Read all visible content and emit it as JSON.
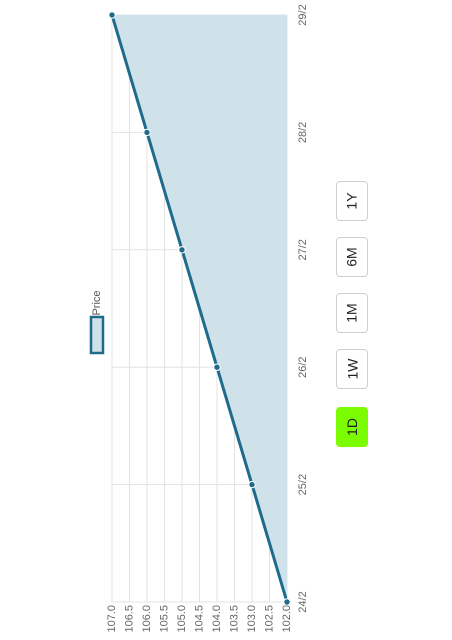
{
  "chart_data": {
    "type": "area",
    "x": [
      "24/2",
      "25/2",
      "26/2",
      "27/2",
      "28/2",
      "29/2"
    ],
    "series": [
      {
        "name": "Price",
        "values": [
          102.0,
          103.0,
          104.0,
          105.0,
          106.0,
          107.0
        ]
      }
    ],
    "ylim": [
      102.0,
      107.0
    ],
    "y_ticks": [
      "102.0",
      "102.5",
      "103.0",
      "103.5",
      "104.0",
      "104.5",
      "105.0",
      "105.5",
      "106.0",
      "106.5",
      "107.0"
    ],
    "x_ticks": [
      "24/2",
      "25/2",
      "26/2",
      "27/2",
      "28/2",
      "29/2"
    ],
    "grid": true,
    "legend": "top",
    "line_color": "#1f6b8c",
    "fill_color": "#cfe2ea"
  },
  "range_selector": {
    "buttons": [
      "1D",
      "1W",
      "1M",
      "6M",
      "1Y"
    ],
    "active": "1D",
    "active_color": "#7CFC00"
  }
}
